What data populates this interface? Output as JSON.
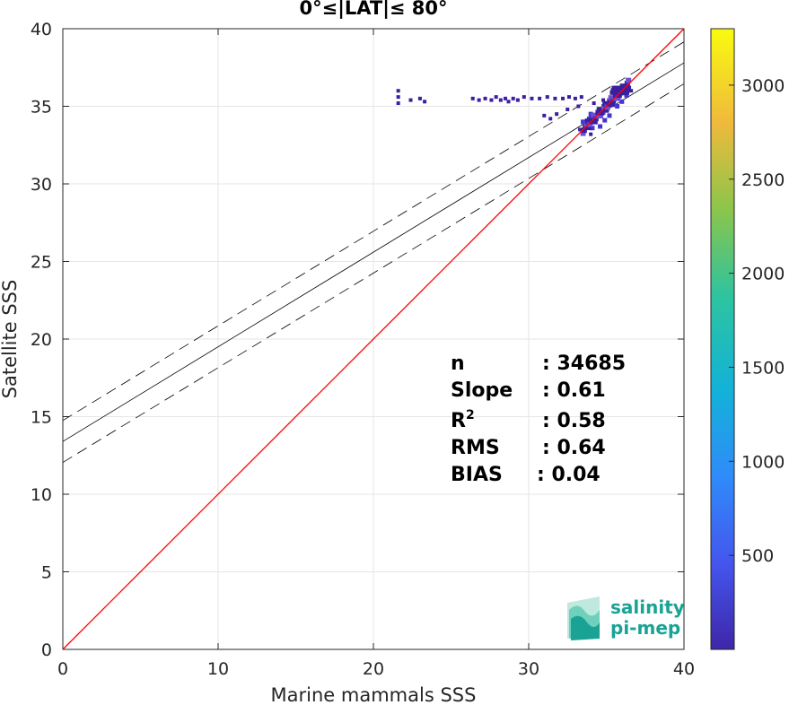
{
  "chart_data": {
    "type": "scatter",
    "title": "0°≤|LAT|≤ 80°",
    "xlabel": "Marine mammals SSS",
    "ylabel": "Satellite SSS",
    "xlim": [
      0,
      40
    ],
    "ylim": [
      0,
      40
    ],
    "xticks": [
      "0",
      "10",
      "20",
      "30",
      "40"
    ],
    "yticks": [
      "0",
      "5",
      "10",
      "15",
      "20",
      "25",
      "30",
      "35",
      "40"
    ],
    "grid": true,
    "colorbar": {
      "range": [
        0,
        3300
      ],
      "ticks": [
        "500",
        "1000",
        "1500",
        "2000",
        "2500",
        "3000"
      ],
      "tick_values": [
        500,
        1000,
        1500,
        2000,
        2500,
        3000
      ],
      "colormap": "parula"
    },
    "reference_line": {
      "name": "1:1",
      "color": "#ff0000"
    },
    "fit_line": {
      "intercept": 13.4,
      "slope": 0.61,
      "band": 1.35
    },
    "stats": [
      {
        "label": "n",
        "value": ": 34685"
      },
      {
        "label": "Slope",
        "value": ": 0.61"
      },
      {
        "label": "R",
        "sup": "2",
        "value": ": 0.58"
      },
      {
        "label": "RMS",
        "value": ": 0.64"
      },
      {
        "label": "BIAS",
        "value": ": 0.04"
      }
    ],
    "density_points": [
      [
        21.6,
        35.2,
        150
      ],
      [
        21.6,
        35.6,
        150
      ],
      [
        21.6,
        36.0,
        150
      ],
      [
        22.4,
        35.4,
        120
      ],
      [
        23.0,
        35.5,
        200
      ],
      [
        23.3,
        35.3,
        150
      ],
      [
        26.4,
        35.5,
        200
      ],
      [
        26.8,
        35.4,
        150
      ],
      [
        27.2,
        35.5,
        200
      ],
      [
        27.6,
        35.4,
        250
      ],
      [
        27.9,
        35.6,
        300
      ],
      [
        28.2,
        35.4,
        250
      ],
      [
        28.5,
        35.5,
        300
      ],
      [
        28.7,
        35.3,
        250
      ],
      [
        29.0,
        35.5,
        300
      ],
      [
        29.3,
        35.4,
        250
      ],
      [
        29.7,
        35.6,
        200
      ],
      [
        30.2,
        35.5,
        200
      ],
      [
        30.7,
        35.5,
        150
      ],
      [
        31.2,
        35.6,
        150
      ],
      [
        31.7,
        35.5,
        200
      ],
      [
        32.2,
        35.5,
        150
      ],
      [
        32.6,
        35.6,
        200
      ],
      [
        33.0,
        35.5,
        150
      ],
      [
        33.4,
        35.6,
        200
      ],
      [
        31.0,
        34.4,
        150
      ],
      [
        31.4,
        34.2,
        150
      ],
      [
        31.8,
        34.5,
        120
      ],
      [
        32.5,
        34.8,
        120
      ],
      [
        33.2,
        35.0,
        150
      ],
      [
        33.5,
        34.0,
        400
      ],
      [
        33.7,
        33.8,
        500
      ],
      [
        33.9,
        34.2,
        600
      ],
      [
        34.1,
        33.6,
        400
      ],
      [
        34.0,
        34.5,
        500
      ],
      [
        34.3,
        34.0,
        700
      ],
      [
        34.5,
        34.4,
        800
      ],
      [
        34.6,
        33.7,
        400
      ],
      [
        34.8,
        34.6,
        700
      ],
      [
        34.9,
        34.1,
        600
      ],
      [
        35.1,
        34.9,
        900
      ],
      [
        35.2,
        34.4,
        500
      ],
      [
        35.4,
        35.1,
        800
      ],
      [
        35.6,
        35.5,
        1000
      ],
      [
        35.7,
        35.0,
        600
      ],
      [
        35.9,
        35.8,
        900
      ],
      [
        36.0,
        35.3,
        500
      ],
      [
        36.1,
        36.1,
        800
      ],
      [
        36.3,
        35.7,
        500
      ],
      [
        36.4,
        36.2,
        400
      ],
      [
        36.6,
        36.0,
        300
      ],
      [
        36.0,
        36.3,
        300
      ],
      [
        35.5,
        36.1,
        250
      ],
      [
        34.2,
        35.2,
        200
      ],
      [
        34.8,
        35.4,
        200
      ],
      [
        33.3,
        33.5,
        200
      ],
      [
        34.0,
        33.2,
        200
      ]
    ]
  },
  "logo": {
    "line1": "salinity",
    "line2": "pi-mep"
  }
}
